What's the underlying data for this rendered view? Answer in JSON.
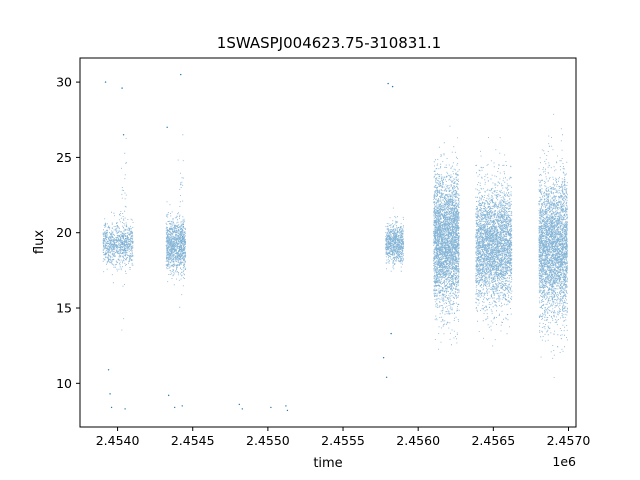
{
  "chart_data": {
    "type": "scatter",
    "title": "1SWASPJ004623.75-310831.1",
    "xlabel": "time",
    "ylabel": "flux",
    "x_offset_label": "1e6",
    "xlim": [
      2.45375,
      2.45705
    ],
    "ylim": [
      7.1,
      31.6
    ],
    "x_ticks": [
      2.454,
      2.4545,
      2.455,
      2.4555,
      2.456,
      2.4565,
      2.457
    ],
    "x_tick_labels": [
      "2.4540",
      "2.4545",
      "2.4550",
      "2.4555",
      "2.4560",
      "2.4565",
      "2.4570"
    ],
    "y_ticks": [
      10,
      15,
      20,
      25,
      30
    ],
    "y_tick_labels": [
      "10",
      "15",
      "20",
      "25",
      "30"
    ],
    "grid": false,
    "marker_color": "#1f77b4",
    "series": [
      {
        "clusters": [
          {
            "x_range": [
              2.4539,
              2.4541
            ],
            "y_center": 19.3,
            "y_spread": 1.6,
            "n": 900
          },
          {
            "x_range": [
              2.45402,
              2.45406
            ],
            "y_center": 20.5,
            "y_spread": 5.5,
            "n": 40
          },
          {
            "x_range": [
              2.45432,
              2.45445
            ],
            "y_center": 19.2,
            "y_spread": 2.0,
            "n": 1100
          },
          {
            "x_range": [
              2.4544,
              2.45444
            ],
            "y_center": 20.5,
            "y_spread": 6.0,
            "n": 40
          },
          {
            "x_range": [
              2.45578,
              2.4559
            ],
            "y_center": 19.3,
            "y_spread": 1.5,
            "n": 800
          },
          {
            "x_range": [
              2.4561,
              2.45627
            ],
            "y_center": 19.5,
            "y_spread": 5.0,
            "n": 3500
          },
          {
            "x_range": [
              2.45638,
              2.45662
            ],
            "y_center": 19.2,
            "y_spread": 4.5,
            "n": 3500
          },
          {
            "x_range": [
              2.4568,
              2.45699
            ],
            "y_center": 19.0,
            "y_spread": 5.5,
            "n": 3500
          }
        ],
        "points": [
          {
            "x": 2.45392,
            "y": 30.0
          },
          {
            "x": 2.45395,
            "y": 9.3
          },
          {
            "x": 2.45394,
            "y": 10.9
          },
          {
            "x": 2.45396,
            "y": 8.4
          },
          {
            "x": 2.45405,
            "y": 8.3
          },
          {
            "x": 2.45403,
            "y": 29.6
          },
          {
            "x": 2.45404,
            "y": 26.5
          },
          {
            "x": 2.45433,
            "y": 27.0
          },
          {
            "x": 2.45434,
            "y": 9.2
          },
          {
            "x": 2.45438,
            "y": 8.4
          },
          {
            "x": 2.45442,
            "y": 30.5
          },
          {
            "x": 2.45443,
            "y": 8.5
          },
          {
            "x": 2.45481,
            "y": 8.6
          },
          {
            "x": 2.45483,
            "y": 8.3
          },
          {
            "x": 2.45502,
            "y": 8.4
          },
          {
            "x": 2.45512,
            "y": 8.5
          },
          {
            "x": 2.45513,
            "y": 8.2
          },
          {
            "x": 2.45577,
            "y": 11.7
          },
          {
            "x": 2.45579,
            "y": 10.4
          },
          {
            "x": 2.4558,
            "y": 29.9
          },
          {
            "x": 2.45583,
            "y": 29.7
          },
          {
            "x": 2.45582,
            "y": 13.3
          }
        ]
      }
    ]
  }
}
